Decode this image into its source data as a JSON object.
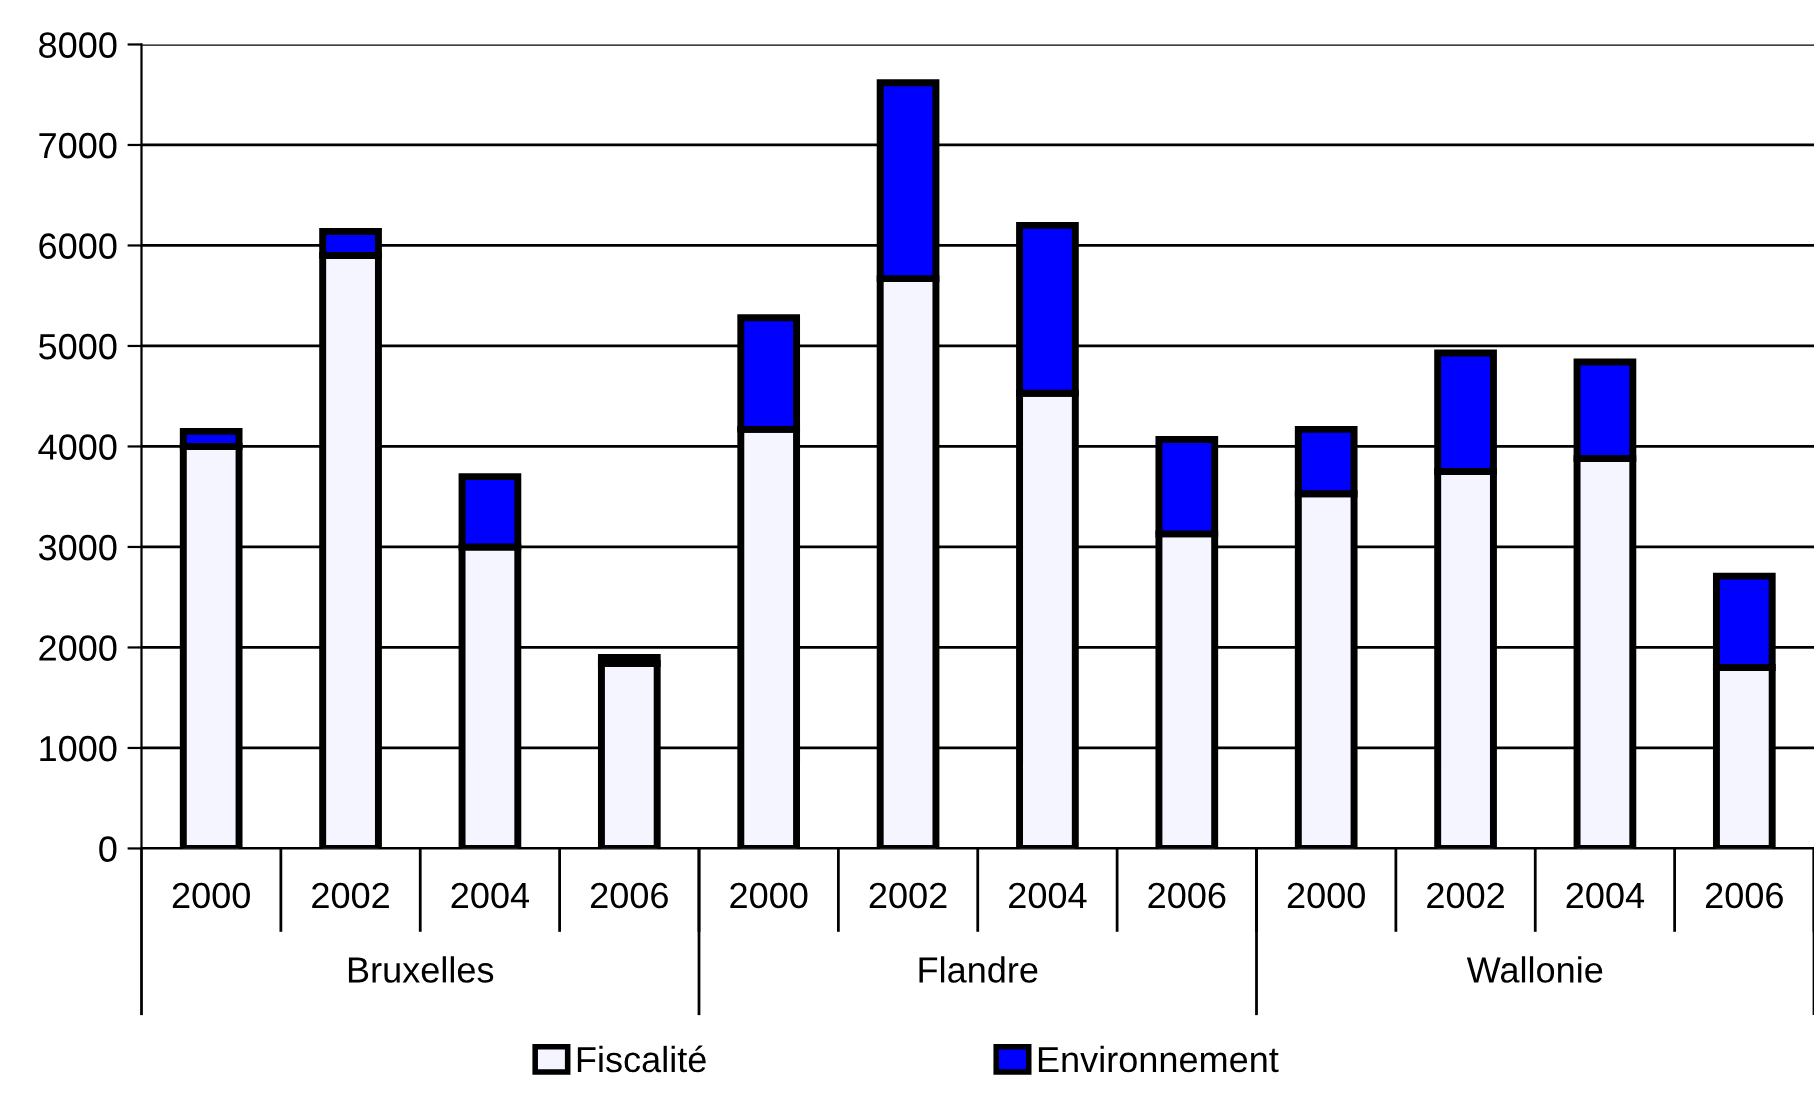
{
  "chart_data": {
    "type": "bar",
    "stacked": true,
    "categories": [
      "2000",
      "2002",
      "2004",
      "2006",
      "2000",
      "2002",
      "2004",
      "2006",
      "2000",
      "2002",
      "2004",
      "2006"
    ],
    "series": [
      {
        "name": "Fiscalité",
        "color": "#f5f5ff",
        "values": [
          4000,
          5900,
          3000,
          1840,
          4170,
          5670,
          4530,
          3130,
          3530,
          3750,
          3880,
          1800
        ]
      },
      {
        "name": "Environnement",
        "color": "#0000ff",
        "values": [
          150,
          240,
          700,
          60,
          1110,
          1950,
          1670,
          940,
          640,
          1180,
          960,
          910
        ]
      }
    ],
    "annotations": [
      "Bruxelles",
      "Flandre",
      "Wallonie"
    ],
    "ylim": [
      0,
      8000
    ],
    "yticks": [
      0,
      1000,
      2000,
      3000,
      4000,
      5000,
      6000,
      7000,
      8000
    ],
    "grid": "y",
    "legend": "bottom"
  }
}
